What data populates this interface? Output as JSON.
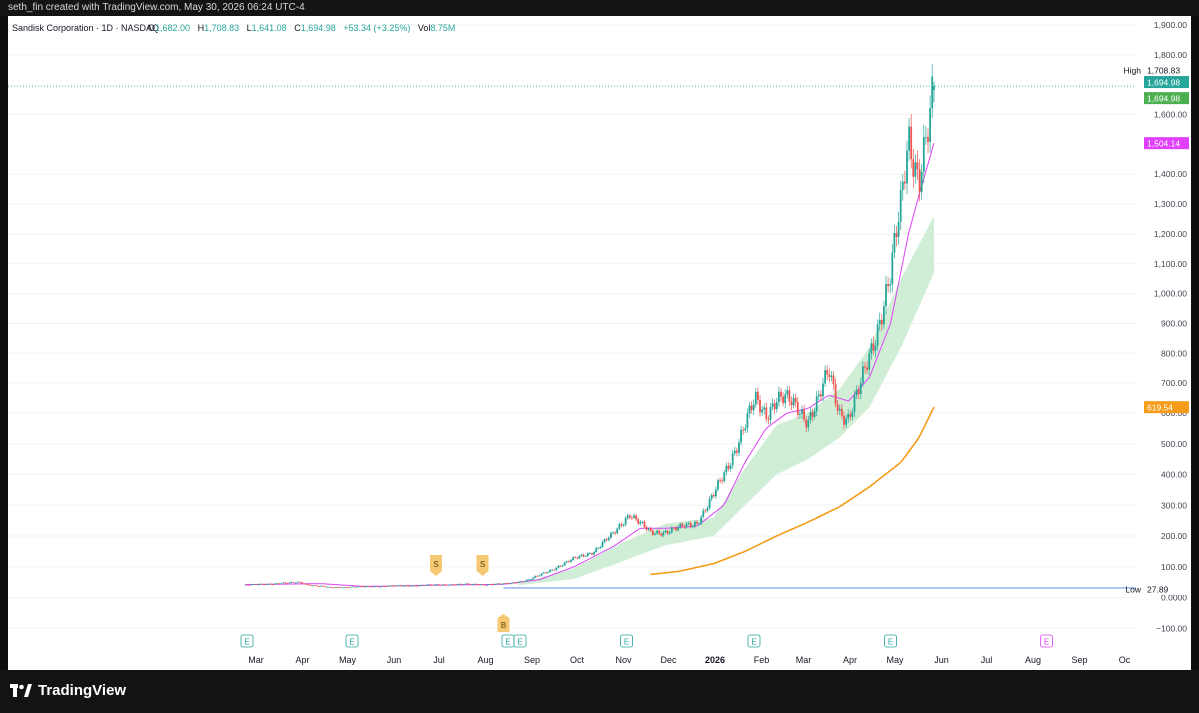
{
  "attribution": "seth_fin created with TradingView.com, May 30, 2026 06:24 UTC-4",
  "legend": {
    "symbol": "Sandisk Corporation · 1D · NASDAQ",
    "o_label": "O",
    "o_value": "1,682.00",
    "h_label": "H",
    "h_value": "1,708.83",
    "l_label": "L",
    "l_value": "1,641.08",
    "c_label": "C",
    "c_value": "1,694.98",
    "change": "+53.34 (+3.25%)",
    "vol_label": "Vol",
    "vol_value": "8.75M"
  },
  "brand": "TradingView",
  "colors": {
    "up": "#26a69a",
    "down": "#ef5350",
    "ma_fast": "#e040fb",
    "ma_slow": "#f59c1a",
    "band": "#c8ebcf",
    "low_line": "#9bb8f0",
    "last_price": "#26a69a",
    "markers": "#f7c873"
  },
  "chart_data": {
    "type": "candlestick",
    "title": "",
    "y_axis_ticks": [
      1900,
      1800,
      1600,
      1400,
      1300,
      1200,
      1100,
      1000,
      900,
      800,
      700,
      600,
      500,
      400,
      300,
      200,
      100,
      0,
      -100
    ],
    "y_tick_labels": [
      "1,900.00",
      "1,800.00",
      "1,600.00",
      "1,400.00",
      "1,300.00",
      "1,200.00",
      "1,100.00",
      "1,000.00",
      "900.00",
      "800.00",
      "700.00",
      "600.00",
      "500.00",
      "400.00",
      "300.00",
      "200.00",
      "100.00",
      "0.0000",
      "−100.00"
    ],
    "x_axis_labels": [
      "Mar",
      "Apr",
      "May",
      "Jun",
      "Jul",
      "Aug",
      "Sep",
      "Oct",
      "Nov",
      "Dec",
      "2026",
      "Feb",
      "Mar",
      "Apr",
      "May",
      "Jun",
      "Jul",
      "Aug",
      "Sep",
      "Oc"
    ],
    "price_series": [
      [
        "2025-02-24",
        40
      ],
      [
        "2025-03-10",
        44
      ],
      [
        "2025-03-24",
        47
      ],
      [
        "2025-04-01",
        50
      ],
      [
        "2025-04-08",
        40
      ],
      [
        "2025-04-21",
        33
      ],
      [
        "2025-05-05",
        34
      ],
      [
        "2025-05-19",
        36
      ],
      [
        "2025-06-09",
        38
      ],
      [
        "2025-06-23",
        40
      ],
      [
        "2025-07-07",
        42
      ],
      [
        "2025-07-21",
        43
      ],
      [
        "2025-08-04",
        42
      ],
      [
        "2025-08-18",
        45
      ],
      [
        "2025-09-01",
        58
      ],
      [
        "2025-09-08",
        72
      ],
      [
        "2025-09-15",
        88
      ],
      [
        "2025-09-22",
        105
      ],
      [
        "2025-10-01",
        125
      ],
      [
        "2025-10-14",
        150
      ],
      [
        "2025-10-27",
        205
      ],
      [
        "2025-11-07",
        275
      ],
      [
        "2025-11-14",
        240
      ],
      [
        "2025-11-21",
        210
      ],
      [
        "2025-12-01",
        215
      ],
      [
        "2025-12-10",
        225
      ],
      [
        "2025-12-22",
        245
      ],
      [
        "2026-01-02",
        330
      ],
      [
        "2026-01-09",
        400
      ],
      [
        "2026-01-16",
        480
      ],
      [
        "2026-01-23",
        560
      ],
      [
        "2026-01-30",
        640
      ],
      [
        "2026-02-06",
        600
      ],
      [
        "2026-02-13",
        650
      ],
      [
        "2026-02-20",
        640
      ],
      [
        "2026-02-27",
        620
      ],
      [
        "2026-03-06",
        580
      ],
      [
        "2026-03-13",
        640
      ],
      [
        "2026-03-20",
        740
      ],
      [
        "2026-03-27",
        610
      ],
      [
        "2026-04-02",
        580
      ],
      [
        "2026-04-09",
        670
      ],
      [
        "2026-04-16",
        800
      ],
      [
        "2026-04-23",
        920
      ],
      [
        "2026-04-30",
        1050
      ],
      [
        "2026-05-07",
        1300
      ],
      [
        "2026-05-12",
        1550
      ],
      [
        "2026-05-19",
        1380
      ],
      [
        "2026-05-26",
        1550
      ],
      [
        "2026-05-29",
        1695
      ]
    ],
    "ma_fast_series": [
      [
        "2025-02-24",
        42
      ],
      [
        "2025-04-15",
        45
      ],
      [
        "2025-05-15",
        36
      ],
      [
        "2025-07-01",
        40
      ],
      [
        "2025-08-15",
        43
      ],
      [
        "2025-09-08",
        58
      ],
      [
        "2025-10-01",
        100
      ],
      [
        "2025-10-27",
        165
      ],
      [
        "2025-11-14",
        225
      ],
      [
        "2025-12-01",
        225
      ],
      [
        "2025-12-22",
        232
      ],
      [
        "2026-01-09",
        300
      ],
      [
        "2026-01-23",
        440
      ],
      [
        "2026-02-06",
        550
      ],
      [
        "2026-02-20",
        600
      ],
      [
        "2026-03-06",
        615
      ],
      [
        "2026-03-20",
        660
      ],
      [
        "2026-04-02",
        640
      ],
      [
        "2026-04-16",
        720
      ],
      [
        "2026-04-30",
        900
      ],
      [
        "2026-05-12",
        1200
      ],
      [
        "2026-05-19",
        1330
      ],
      [
        "2026-05-29",
        1504
      ]
    ],
    "ma_slow_series": [
      [
        "2025-11-21",
        75
      ],
      [
        "2025-12-10",
        85
      ],
      [
        "2026-01-02",
        110
      ],
      [
        "2026-01-23",
        150
      ],
      [
        "2026-02-13",
        200
      ],
      [
        "2026-03-06",
        245
      ],
      [
        "2026-03-27",
        295
      ],
      [
        "2026-04-16",
        360
      ],
      [
        "2026-05-07",
        440
      ],
      [
        "2026-05-19",
        520
      ],
      [
        "2026-05-29",
        620
      ]
    ],
    "band_upper": [
      [
        "2025-08-25",
        45
      ],
      [
        "2025-10-01",
        95
      ],
      [
        "2025-11-01",
        175
      ],
      [
        "2025-12-01",
        240
      ],
      [
        "2026-01-02",
        260
      ],
      [
        "2026-01-23",
        420
      ],
      [
        "2026-02-13",
        560
      ],
      [
        "2026-03-06",
        600
      ],
      [
        "2026-03-27",
        680
      ],
      [
        "2026-04-16",
        820
      ],
      [
        "2026-05-07",
        1050
      ],
      [
        "2026-05-29",
        1260
      ]
    ],
    "band_lower": [
      [
        "2025-08-25",
        40
      ],
      [
        "2025-10-01",
        60
      ],
      [
        "2025-11-01",
        115
      ],
      [
        "2025-12-01",
        170
      ],
      [
        "2026-01-02",
        200
      ],
      [
        "2026-01-23",
        300
      ],
      [
        "2026-02-13",
        400
      ],
      [
        "2026-03-06",
        450
      ],
      [
        "2026-03-27",
        520
      ],
      [
        "2026-04-16",
        620
      ],
      [
        "2026-05-07",
        820
      ],
      [
        "2026-05-29",
        1070
      ]
    ],
    "price_labels": {
      "high_label": "High",
      "high_value": "1,708.83",
      "last_value": "1,694.98",
      "close_value": "1,694.98",
      "ma_fast_value": "1,504.14",
      "ma_slow_value": "619.54",
      "low_label": "Low",
      "low_value": "27.89"
    },
    "current_price": 1694.98,
    "low_price": 27.89,
    "trade_markers": [
      {
        "label": "S",
        "date": "2025-07-01"
      },
      {
        "label": "S",
        "date": "2025-08-01"
      },
      {
        "label": "B",
        "date": "2025-08-15"
      }
    ],
    "event_markers": [
      {
        "label": "E",
        "date": "2025-02-25"
      },
      {
        "label": "E",
        "date": "2025-05-06"
      },
      {
        "label": "E",
        "date": "2025-08-18"
      },
      {
        "label": "E",
        "date": "2025-08-26"
      },
      {
        "label": "E",
        "date": "2025-11-05"
      },
      {
        "label": "E",
        "date": "2026-01-29"
      },
      {
        "label": "E",
        "date": "2026-04-30"
      },
      {
        "label": "E",
        "date": "2026-08-12"
      }
    ]
  }
}
